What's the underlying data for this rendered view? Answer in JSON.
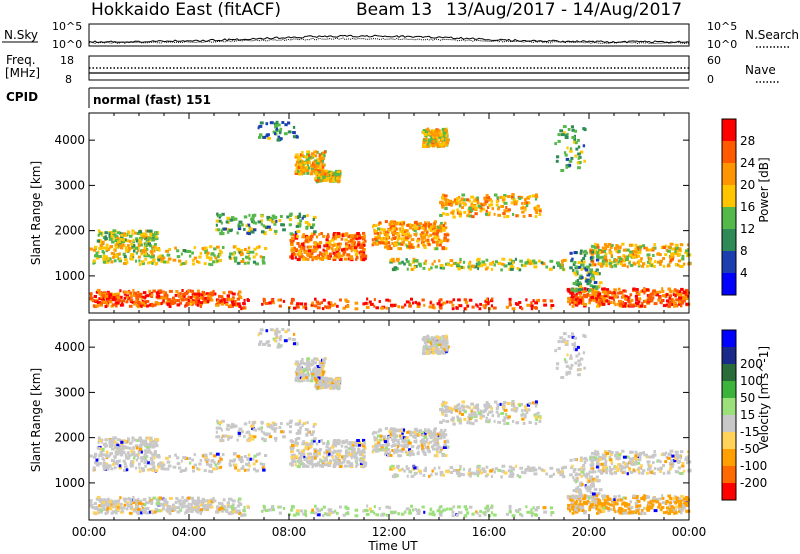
{
  "header": {
    "station": "Hokkaido East (fitACF)",
    "beam": "Beam 13",
    "dates": "13/Aug/2017 - 14/Aug/2017"
  },
  "nsky_panel": {
    "label": "N.Sky",
    "left_ticks": [
      "10^5",
      "10^0"
    ],
    "right_ticks": [
      "10^5",
      "10^0"
    ],
    "right_label": "N.Search"
  },
  "freq_panel": {
    "label_line1": "Freq.",
    "label_line2": "[MHz]",
    "left_ticks": [
      "18",
      "8"
    ],
    "right_ticks": [
      "60",
      "0"
    ],
    "right_label": "Nave"
  },
  "cpid_panel": {
    "label": "CPID",
    "value": "normal (fast) 151"
  },
  "colors": {
    "power": [
      "#0000ff",
      "#1c3fb0",
      "#2e8b57",
      "#55b84a",
      "#ffc600",
      "#ff9600",
      "#ff5a00",
      "#ff0000"
    ],
    "velocity": [
      "#ff0000",
      "#ff6a00",
      "#ffa000",
      "#ffd25a",
      "#c8c8c8",
      "#9be07a",
      "#3cb43c",
      "#2a6b3a",
      "#1a2a8a",
      "#0000ff"
    ]
  },
  "chart_data": [
    {
      "type": "heatmap",
      "title": "",
      "xlabel": "",
      "ylabel": "Slant Range [km]",
      "x_ticks": [
        "00:00",
        "04:00",
        "08:00",
        "12:00",
        "16:00",
        "20:00",
        "00:00"
      ],
      "y_ticks": [
        1000,
        2000,
        3000,
        4000
      ],
      "xlim_hours": [
        0,
        24
      ],
      "ylim_km": [
        180,
        4600
      ],
      "colorbar": {
        "label": "Power [dB]",
        "ticks": [
          4,
          8,
          12,
          16,
          20,
          24,
          28
        ],
        "range": [
          0,
          32
        ]
      }
    },
    {
      "type": "heatmap",
      "title": "",
      "xlabel": "Time UT",
      "ylabel": "Slant Range [km]",
      "x_ticks": [
        "00:00",
        "04:00",
        "08:00",
        "12:00",
        "16:00",
        "20:00",
        "00:00"
      ],
      "y_ticks": [
        1000,
        2000,
        3000,
        4000
      ],
      "xlim_hours": [
        0,
        24
      ],
      "ylim_km": [
        180,
        4600
      ],
      "colorbar": {
        "label": "Velocity [m s^-1]",
        "ticks": [
          -200,
          -100,
          -50,
          -15,
          15,
          50,
          100,
          200
        ]
      }
    }
  ]
}
